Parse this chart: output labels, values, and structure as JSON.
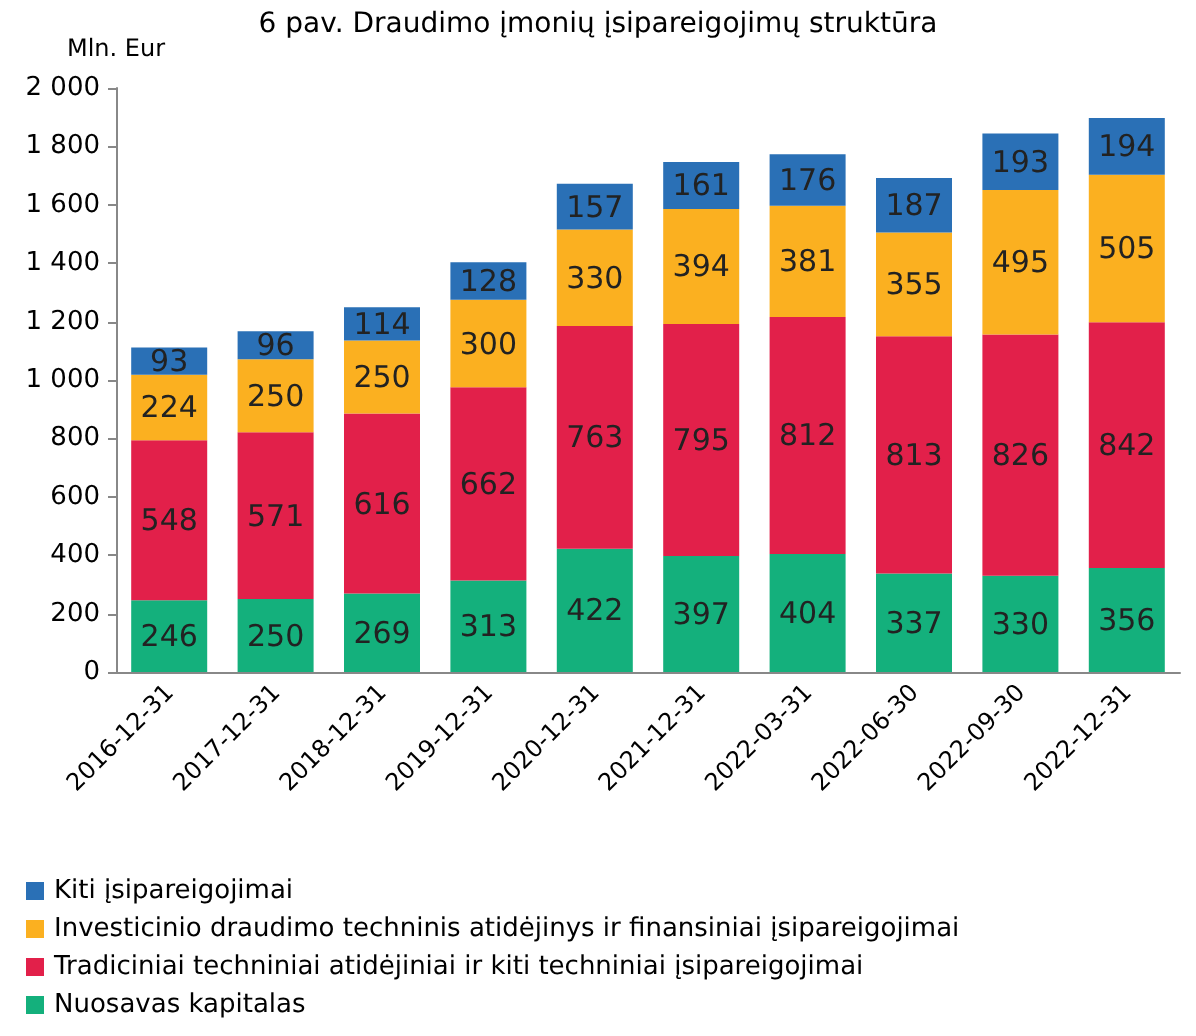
{
  "chart_data": {
    "type": "bar",
    "title": "6 pav. Draudimo įmonių įsipareigojimų struktūra",
    "ylabel": "Mln. Eur",
    "categories": [
      "2016-12-31",
      "2017-12-31",
      "2018-12-31",
      "2019-12-31",
      "2020-12-31",
      "2021-12-31",
      "2022-03-31",
      "2022-06-30",
      "2022-09-30",
      "2022-12-31"
    ],
    "series": [
      {
        "name": "Nuosavas kapitalas",
        "color": "#14b07c",
        "values": [
          246,
          250,
          269,
          313,
          422,
          397,
          404,
          337,
          330,
          356
        ]
      },
      {
        "name": "Tradiciniai techniniai atidėjiniai ir kiti techniniai įsipareigojimai",
        "color": "#e2204a",
        "values": [
          548,
          571,
          616,
          662,
          763,
          795,
          812,
          813,
          826,
          842
        ]
      },
      {
        "name": "Investicinio draudimo techninis atidėjinys ir finansiniai įsipareigojimai",
        "color": "#fbb020",
        "values": [
          224,
          250,
          250,
          300,
          330,
          394,
          381,
          355,
          495,
          505
        ]
      },
      {
        "name": "Kiti įsipareigojimai",
        "color": "#2a70b6",
        "values": [
          93,
          96,
          114,
          128,
          157,
          161,
          176,
          187,
          193,
          194
        ]
      }
    ],
    "stacked": true,
    "data_labels": true,
    "legend": "bottom",
    "ylim": [
      0,
      2000
    ],
    "yticks": [
      0,
      200,
      400,
      600,
      800,
      {
        "value": 1000,
        "label": "1 000"
      },
      {
        "value": 1200,
        "label": "1 200"
      },
      {
        "value": 1400,
        "label": "1 400"
      },
      {
        "value": 1600,
        "label": "1 600"
      },
      {
        "value": 1800,
        "label": "1 800"
      },
      {
        "value": 2000,
        "label": "2 000"
      }
    ],
    "grid": false
  }
}
